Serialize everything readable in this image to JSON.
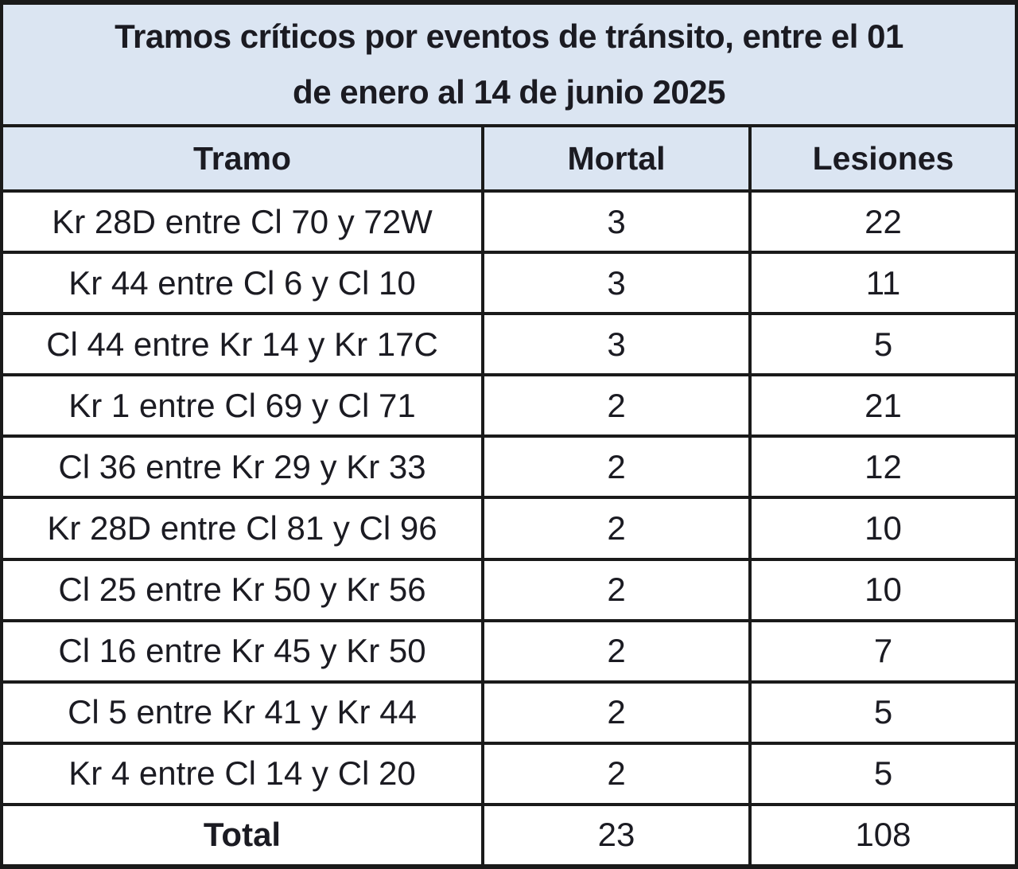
{
  "table": {
    "title_full": "Tramos críticos por eventos de tránsito, entre el 01 de enero al 14 de junio 2025",
    "title_lines": [
      "Tramos críticos por eventos de tránsito, entre el 01",
      "de enero al 14 de junio 2025"
    ],
    "columns": [
      "Tramo",
      "Mortal",
      "Lesiones"
    ],
    "rows": [
      [
        "Kr 28D entre Cl 70 y 72W",
        3,
        22
      ],
      [
        "Kr 44 entre Cl 6 y Cl 10",
        3,
        11
      ],
      [
        "Cl 44 entre Kr 14 y Kr 17C",
        3,
        5
      ],
      [
        "Kr 1 entre Cl 69 y Cl 71",
        2,
        21
      ],
      [
        "Cl 36 entre Kr 29 y Kr 33",
        2,
        12
      ],
      [
        "Kr 28D entre Cl 81 y Cl 96",
        2,
        10
      ],
      [
        "Cl 25 entre Kr 50 y Kr 56",
        2,
        10
      ],
      [
        "Cl 16 entre Kr 45 y Kr 50",
        2,
        7
      ],
      [
        "Cl 5 entre Kr 41 y Kr 44",
        2,
        5
      ],
      [
        "Kr 4 entre Cl 14 y Cl 20",
        2,
        5
      ]
    ],
    "total": {
      "label": "Total",
      "mortal": 23,
      "lesiones": 108
    }
  },
  "colors": {
    "header_bg": "#dbe5f2",
    "row_bg": "#ffffff",
    "border": "#1a1a1a",
    "text": "#1b1b22"
  },
  "chart_data": {
    "type": "table",
    "title": "Tramos críticos por eventos de tránsito, entre el 01 de enero al 14 de junio 2025",
    "columns": [
      "Tramo",
      "Mortal",
      "Lesiones"
    ],
    "rows": [
      [
        "Kr 28D entre Cl 70 y 72W",
        3,
        22
      ],
      [
        "Kr 44 entre Cl 6 y Cl 10",
        3,
        11
      ],
      [
        "Cl 44 entre Kr 14 y Kr 17C",
        3,
        5
      ],
      [
        "Kr 1 entre Cl 69 y Cl 71",
        2,
        21
      ],
      [
        "Cl 36 entre Kr 29 y Kr 33",
        2,
        12
      ],
      [
        "Kr 28D entre Cl 81 y Cl 96",
        2,
        10
      ],
      [
        "Cl 25 entre Kr 50 y Kr 56",
        2,
        10
      ],
      [
        "Cl 16 entre Kr 45 y Kr 50",
        2,
        7
      ],
      [
        "Cl 5 entre Kr 41 y Kr 44",
        2,
        5
      ],
      [
        "Kr 4 entre Cl 14 y Cl 20",
        2,
        5
      ]
    ],
    "total_row": [
      "Total",
      23,
      108
    ]
  }
}
